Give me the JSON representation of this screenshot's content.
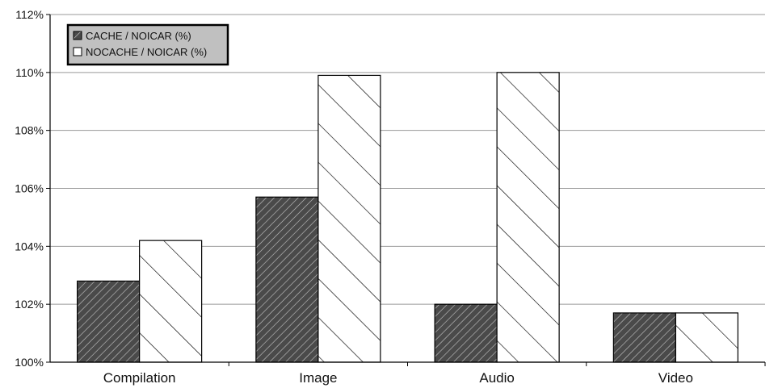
{
  "chart_data": {
    "type": "bar",
    "title": "",
    "xlabel": "",
    "ylabel": "",
    "categories": [
      "Compilation",
      "Image",
      "Audio",
      "Video"
    ],
    "series": [
      {
        "name": "CACHE / NOICAR (%)",
        "values": [
          102.8,
          105.7,
          102.0,
          101.7
        ]
      },
      {
        "name": "NOCACHE / NOICAR (%)",
        "values": [
          104.2,
          109.9,
          110.0,
          101.7
        ]
      }
    ],
    "ylim": [
      100,
      112
    ],
    "yticks": [
      100,
      102,
      104,
      106,
      108,
      110,
      112
    ],
    "ytick_labels": [
      "100%",
      "102%",
      "104%",
      "106%",
      "108%",
      "110%",
      "112%"
    ],
    "grid": true,
    "legend_position": "top-left",
    "colors": {
      "series_dark_fill": "#4a4a4a",
      "series_light_fill": "#ffffff",
      "bar_outline": "#000000",
      "gridline": "#9a9a9a",
      "legend_background": "#c0c0c0"
    }
  }
}
